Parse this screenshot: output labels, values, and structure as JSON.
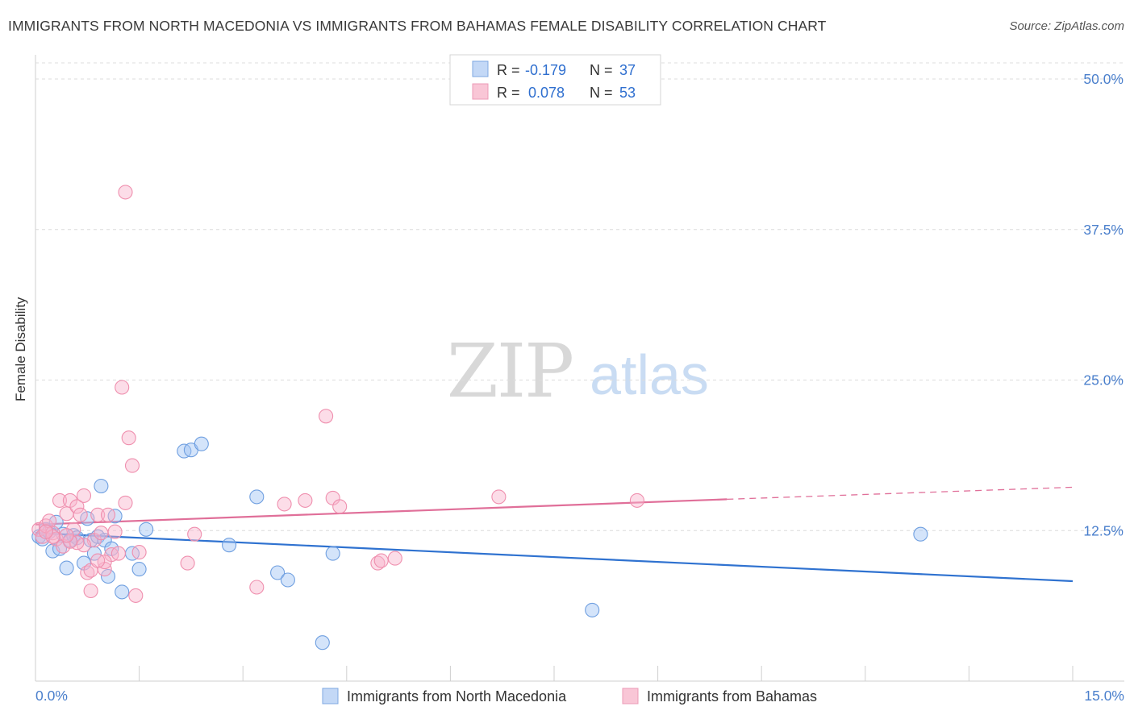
{
  "header": {
    "title": "IMMIGRANTS FROM NORTH MACEDONIA VS IMMIGRANTS FROM BAHAMAS FEMALE DISABILITY CORRELATION CHART",
    "source": "Source: ZipAtlas.com"
  },
  "watermark": {
    "zip": "ZIP",
    "atlas": "atlas"
  },
  "legend": {
    "r_label": "R =",
    "n_label": "N =",
    "rows": [
      {
        "r": "-0.179",
        "n": "37",
        "color": "#6f9fe0"
      },
      {
        "r": "0.078",
        "n": "53",
        "color": "#ef8fae"
      }
    ]
  },
  "chart_data": {
    "type": "scatter",
    "title": "IMMIGRANTS FROM NORTH MACEDONIA VS IMMIGRANTS FROM BAHAMAS FEMALE DISABILITY CORRELATION CHART",
    "xlabel": "",
    "ylabel": "Female Disability",
    "xlim": [
      0,
      15
    ],
    "ylim": [
      0,
      50
    ],
    "x_tick_labels": [
      "0.0%",
      "15.0%"
    ],
    "y_ticks": [
      12.5,
      25,
      37.5,
      50
    ],
    "y_tick_labels": [
      "12.5%",
      "25.0%",
      "37.5%",
      "50.0%"
    ],
    "grid": true,
    "series": [
      {
        "name": "Immigrants from North Macedonia",
        "color": "#6f9fe0",
        "fill": "rgba(160,195,245,0.45)",
        "line_color": "#2f72d0",
        "trend": {
          "x0": 0,
          "y0": 12.3,
          "x1": 15,
          "y1": 8.3
        },
        "points": [
          [
            0.05,
            12.0
          ],
          [
            0.1,
            11.8
          ],
          [
            0.15,
            12.6
          ],
          [
            0.2,
            12.4
          ],
          [
            0.25,
            10.8
          ],
          [
            0.3,
            13.2
          ],
          [
            0.35,
            11.0
          ],
          [
            0.4,
            12.2
          ],
          [
            0.45,
            9.4
          ],
          [
            0.5,
            11.7
          ],
          [
            0.55,
            12.1
          ],
          [
            0.6,
            11.9
          ],
          [
            0.7,
            9.8
          ],
          [
            0.75,
            13.5
          ],
          [
            0.8,
            11.7
          ],
          [
            0.85,
            10.6
          ],
          [
            0.9,
            12.0
          ],
          [
            0.95,
            16.2
          ],
          [
            1.0,
            11.7
          ],
          [
            1.05,
            8.7
          ],
          [
            1.1,
            11.0
          ],
          [
            1.15,
            13.7
          ],
          [
            1.25,
            7.4
          ],
          [
            1.4,
            10.6
          ],
          [
            1.5,
            9.3
          ],
          [
            1.6,
            12.6
          ],
          [
            2.15,
            19.1
          ],
          [
            2.25,
            19.2
          ],
          [
            2.4,
            19.7
          ],
          [
            2.8,
            11.3
          ],
          [
            3.2,
            15.3
          ],
          [
            3.5,
            9.0
          ],
          [
            3.65,
            8.4
          ],
          [
            4.15,
            3.2
          ],
          [
            4.3,
            10.6
          ],
          [
            8.05,
            5.9
          ],
          [
            12.8,
            12.2
          ]
        ]
      },
      {
        "name": "Immigrants from Bahamas",
        "color": "#ef8fae",
        "fill": "rgba(248,180,204,0.45)",
        "line_color": "#e06f99",
        "trend": {
          "x0": 0,
          "y0": 13.0,
          "x1": 10.0,
          "y1": 15.1
        },
        "trend_dashed": {
          "x0": 10.0,
          "y0": 15.1,
          "x1": 15,
          "y1": 16.1
        },
        "points": [
          [
            0.05,
            12.6
          ],
          [
            0.1,
            12.0
          ],
          [
            0.15,
            12.9
          ],
          [
            0.2,
            13.3
          ],
          [
            0.25,
            12.3
          ],
          [
            0.3,
            11.8
          ],
          [
            0.35,
            15.0
          ],
          [
            0.4,
            11.2
          ],
          [
            0.45,
            13.9
          ],
          [
            0.5,
            15.0
          ],
          [
            0.55,
            12.6
          ],
          [
            0.6,
            14.5
          ],
          [
            0.65,
            13.8
          ],
          [
            0.7,
            15.4
          ],
          [
            0.75,
            9.0
          ],
          [
            0.8,
            9.2
          ],
          [
            0.85,
            11.7
          ],
          [
            0.9,
            13.8
          ],
          [
            0.95,
            12.3
          ],
          [
            1.0,
            9.3
          ],
          [
            1.05,
            13.8
          ],
          [
            1.1,
            10.5
          ],
          [
            1.15,
            12.4
          ],
          [
            1.2,
            10.6
          ],
          [
            1.3,
            14.8
          ],
          [
            1.35,
            20.2
          ],
          [
            1.4,
            17.9
          ],
          [
            1.45,
            7.1
          ],
          [
            1.3,
            40.6
          ],
          [
            1.25,
            24.4
          ],
          [
            0.8,
            7.5
          ],
          [
            0.7,
            11.3
          ],
          [
            0.6,
            11.5
          ],
          [
            0.5,
            11.6
          ],
          [
            2.3,
            12.2
          ],
          [
            3.2,
            7.8
          ],
          [
            3.6,
            14.7
          ],
          [
            3.9,
            15.0
          ],
          [
            4.2,
            22.0
          ],
          [
            4.3,
            15.2
          ],
          [
            4.4,
            14.5
          ],
          [
            4.95,
            9.8
          ],
          [
            5.0,
            10.0
          ],
          [
            5.2,
            10.2
          ],
          [
            6.7,
            15.3
          ],
          [
            8.7,
            15.0
          ],
          [
            0.45,
            12.1
          ],
          [
            0.25,
            12.0
          ],
          [
            0.15,
            12.4
          ],
          [
            1.0,
            9.9
          ],
          [
            1.5,
            10.7
          ],
          [
            2.2,
            9.8
          ],
          [
            0.9,
            10.0
          ]
        ]
      }
    ]
  }
}
